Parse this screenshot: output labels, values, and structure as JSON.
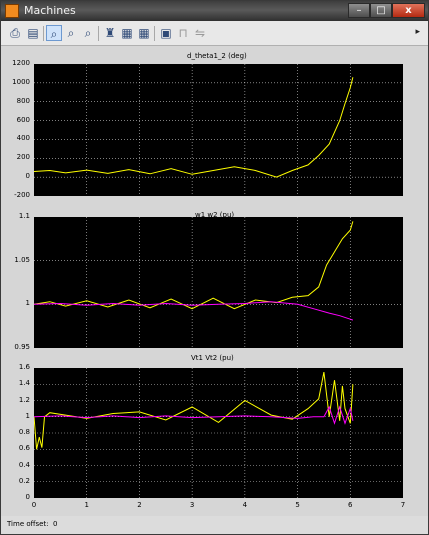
{
  "window": {
    "title": "Machines"
  },
  "window_controls": {
    "minimize": "–",
    "maximize": "□",
    "close": "x"
  },
  "toolbar": {
    "icons": [
      "printer-icon",
      "print-preview-icon",
      "zoom-in-icon",
      "zoom-x-icon",
      "zoom-y-icon",
      "binoculars-icon",
      "save-axes-settings-icon",
      "restore-axes-icon",
      "parameters-icon",
      "lock-icon",
      "signal-selection-icon"
    ],
    "overflow_glyph": "▸"
  },
  "plots": [
    {
      "title": "d_theta1_2 (deg)",
      "yticks": [
        "1200",
        "1000",
        "800",
        "600",
        "400",
        "200",
        "0",
        "-200"
      ],
      "ylim": [
        -200,
        1200
      ]
    },
    {
      "title": "w1 w2 (pu)",
      "yticks": [
        "1.1",
        "1.05",
        "1",
        "0.95"
      ],
      "ylim": [
        0.95,
        1.1
      ]
    },
    {
      "title": "Vt1 Vt2 (pu)",
      "yticks": [
        "1.6",
        "1.4",
        "1.2",
        "1",
        "0.8",
        "0.6",
        "0.4",
        "0.2",
        "0"
      ],
      "ylim": [
        0,
        1.6
      ]
    }
  ],
  "xaxis": {
    "ticks": [
      "0",
      "1",
      "2",
      "3",
      "4",
      "5",
      "6",
      "7"
    ],
    "xlim": [
      0,
      7
    ]
  },
  "colors": {
    "trace1": "#ffff00",
    "trace2": "#ff00ff",
    "grid": "#ffffff",
    "background": "#000000"
  },
  "chart_data": [
    {
      "type": "line",
      "title": "d_theta1_2 (deg)",
      "xlim": [
        0,
        7
      ],
      "ylim": [
        -200,
        1200
      ],
      "grid": true,
      "series": [
        {
          "color": "#ffff00",
          "x": [
            0,
            0.3,
            0.6,
            1,
            1.4,
            1.8,
            2.2,
            2.6,
            3,
            3.4,
            3.8,
            4.2,
            4.6,
            4.9,
            5.2,
            5.4,
            5.6,
            5.8,
            5.9,
            6.0,
            6.05
          ],
          "y": [
            60,
            70,
            45,
            75,
            40,
            80,
            35,
            90,
            30,
            70,
            110,
            70,
            0,
            70,
            130,
            230,
            350,
            600,
            780,
            950,
            1060
          ]
        }
      ]
    },
    {
      "type": "line",
      "title": "w1 w2 (pu)",
      "xlim": [
        0,
        7
      ],
      "ylim": [
        0.95,
        1.1
      ],
      "grid": true,
      "series": [
        {
          "color": "#ffff00",
          "x": [
            0,
            0.3,
            0.6,
            1,
            1.4,
            1.8,
            2.2,
            2.6,
            3,
            3.4,
            3.8,
            4.2,
            4.6,
            4.9,
            5.2,
            5.4,
            5.55,
            5.7,
            5.85,
            6.0,
            6.05
          ],
          "y": [
            1.0,
            1.003,
            0.998,
            1.004,
            0.997,
            1.005,
            0.996,
            1.006,
            0.995,
            1.007,
            0.995,
            1.005,
            1.002,
            1.008,
            1.01,
            1.02,
            1.045,
            1.06,
            1.075,
            1.085,
            1.095
          ]
        },
        {
          "color": "#ff00ff",
          "x": [
            0,
            0.5,
            1,
            1.5,
            2,
            2.5,
            3,
            3.5,
            4,
            4.5,
            5,
            5.3,
            5.6,
            5.8,
            6.0,
            6.05
          ],
          "y": [
            1.0,
            1.001,
            0.999,
            1.001,
            0.999,
            1.001,
            0.999,
            1.0,
            1.001,
            1.003,
            1.0,
            0.995,
            0.99,
            0.987,
            0.983,
            0.982
          ]
        }
      ]
    },
    {
      "type": "line",
      "title": "Vt1 Vt2 (pu)",
      "xlim": [
        0,
        7
      ],
      "ylim": [
        0,
        1.6
      ],
      "grid": true,
      "series": [
        {
          "color": "#ffff00",
          "x": [
            0,
            0.05,
            0.1,
            0.15,
            0.2,
            0.3,
            0.6,
            1,
            1.5,
            2,
            2.5,
            3,
            3.5,
            4,
            4.5,
            4.9,
            5.2,
            5.4,
            5.5,
            5.6,
            5.7,
            5.8,
            5.85,
            5.9,
            6.0,
            6.05
          ],
          "y": [
            1.0,
            0.6,
            0.75,
            0.62,
            1.0,
            1.05,
            1.02,
            0.98,
            1.04,
            1.06,
            0.96,
            1.12,
            0.93,
            1.2,
            1.02,
            0.97,
            1.1,
            1.22,
            1.55,
            1.0,
            1.45,
            0.95,
            1.38,
            1.1,
            0.92,
            1.4
          ]
        },
        {
          "color": "#ff00ff",
          "x": [
            0,
            0.5,
            1,
            1.5,
            2,
            2.5,
            3,
            3.5,
            4,
            4.5,
            5,
            5.3,
            5.5,
            5.6,
            5.7,
            5.8,
            5.9,
            6.0,
            6.05
          ],
          "y": [
            1.0,
            1.01,
            0.99,
            1.01,
            0.99,
            1.01,
            0.99,
            1.0,
            1.01,
            1.0,
            0.98,
            1.0,
            1.0,
            1.12,
            0.92,
            1.12,
            0.92,
            1.1,
            0.95
          ]
        }
      ]
    }
  ],
  "status": {
    "label": "Time offset:",
    "value": "0"
  }
}
